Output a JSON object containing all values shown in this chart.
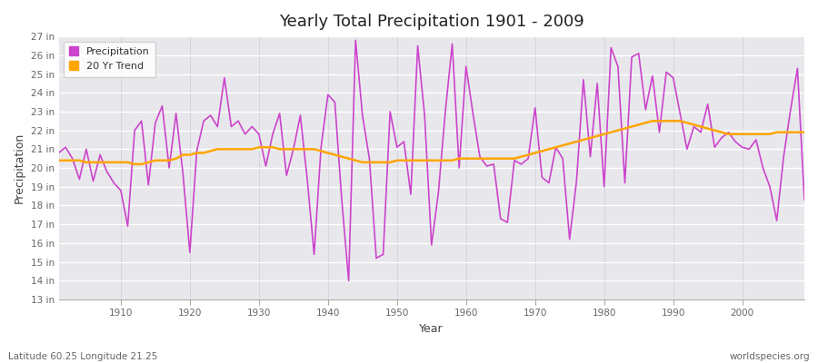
{
  "title": "Yearly Total Precipitation 1901 - 2009",
  "xlabel": "Year",
  "ylabel": "Precipitation",
  "footnote_left": "Latitude 60.25 Longitude 21.25",
  "footnote_right": "worldspecies.org",
  "years": [
    1901,
    1902,
    1903,
    1904,
    1905,
    1906,
    1907,
    1908,
    1909,
    1910,
    1911,
    1912,
    1913,
    1914,
    1915,
    1916,
    1917,
    1918,
    1919,
    1920,
    1921,
    1922,
    1923,
    1924,
    1925,
    1926,
    1927,
    1928,
    1929,
    1930,
    1931,
    1932,
    1933,
    1934,
    1935,
    1936,
    1937,
    1938,
    1939,
    1940,
    1941,
    1942,
    1943,
    1944,
    1945,
    1946,
    1947,
    1948,
    1949,
    1950,
    1951,
    1952,
    1953,
    1954,
    1955,
    1956,
    1957,
    1958,
    1959,
    1960,
    1961,
    1962,
    1963,
    1964,
    1965,
    1966,
    1967,
    1968,
    1969,
    1970,
    1971,
    1972,
    1973,
    1974,
    1975,
    1976,
    1977,
    1978,
    1979,
    1980,
    1981,
    1982,
    1983,
    1984,
    1985,
    1986,
    1987,
    1988,
    1989,
    1990,
    1991,
    1992,
    1993,
    1994,
    1995,
    1996,
    1997,
    1998,
    1999,
    2000,
    2001,
    2002,
    2003,
    2004,
    2005,
    2006,
    2007,
    2008,
    2009
  ],
  "precip": [
    20.8,
    21.1,
    20.5,
    19.4,
    21.0,
    19.3,
    20.7,
    19.8,
    19.2,
    18.8,
    16.9,
    22.0,
    22.5,
    19.1,
    22.4,
    23.3,
    20.0,
    22.9,
    19.7,
    15.5,
    20.9,
    22.5,
    22.8,
    22.2,
    24.8,
    22.2,
    22.5,
    21.8,
    22.2,
    21.8,
    20.1,
    21.8,
    22.9,
    19.6,
    21.0,
    22.8,
    19.4,
    15.4,
    21.1,
    23.9,
    23.5,
    18.3,
    14.0,
    26.8,
    22.8,
    20.5,
    15.2,
    15.4,
    23.0,
    21.1,
    21.4,
    18.6,
    26.5,
    22.8,
    15.9,
    18.7,
    23.0,
    26.6,
    20.0,
    25.4,
    22.9,
    20.6,
    20.1,
    20.2,
    17.3,
    17.1,
    20.4,
    20.2,
    20.5,
    23.2,
    19.5,
    19.2,
    21.1,
    20.5,
    16.2,
    19.3,
    24.7,
    20.6,
    24.5,
    19.0,
    26.4,
    25.4,
    19.2,
    25.9,
    26.1,
    23.1,
    24.9,
    21.9,
    25.1,
    24.8,
    22.9,
    21.0,
    22.2,
    21.9,
    23.4,
    21.1,
    21.6,
    21.9,
    21.4,
    21.1,
    21.0,
    21.5,
    20.0,
    19.0,
    17.2,
    20.6,
    23.1,
    25.3,
    18.3
  ],
  "trend": [
    20.4,
    20.4,
    20.4,
    20.4,
    20.3,
    20.3,
    20.3,
    20.3,
    20.3,
    20.3,
    20.3,
    20.2,
    20.2,
    20.3,
    20.4,
    20.4,
    20.4,
    20.5,
    20.7,
    20.7,
    20.8,
    20.8,
    20.9,
    21.0,
    21.0,
    21.0,
    21.0,
    21.0,
    21.0,
    21.1,
    21.1,
    21.1,
    21.0,
    21.0,
    21.0,
    21.0,
    21.0,
    21.0,
    20.9,
    20.8,
    20.7,
    20.6,
    20.5,
    20.4,
    20.3,
    20.3,
    20.3,
    20.3,
    20.3,
    20.4,
    20.4,
    20.4,
    20.4,
    20.4,
    20.4,
    20.4,
    20.4,
    20.4,
    20.5,
    20.5,
    20.5,
    20.5,
    20.5,
    20.5,
    20.5,
    20.5,
    20.5,
    20.6,
    20.7,
    20.8,
    20.9,
    21.0,
    21.1,
    21.2,
    21.3,
    21.4,
    21.5,
    21.6,
    21.7,
    21.8,
    21.9,
    22.0,
    22.1,
    22.2,
    22.3,
    22.4,
    22.5,
    22.5,
    22.5,
    22.5,
    22.5,
    22.4,
    22.3,
    22.2,
    22.1,
    22.0,
    21.9,
    21.8,
    21.8,
    21.8,
    21.8,
    21.8,
    21.8,
    21.8,
    21.9,
    21.9,
    21.9,
    21.9,
    21.9
  ],
  "precip_color": "#CC44CC",
  "trend_color": "#FFA500",
  "fig_bg_color": "#FFFFFF",
  "plot_bg_color": "#E8E8EC",
  "grid_color_h": "#FFFFFF",
  "grid_color_v": "#CCCCDD",
  "title_color": "#222222",
  "label_color": "#444444",
  "tick_color": "#666666",
  "ylim": [
    13,
    27
  ],
  "yticks": [
    13,
    14,
    15,
    16,
    17,
    18,
    19,
    20,
    21,
    22,
    23,
    24,
    25,
    26,
    27
  ],
  "ytick_labels": [
    "13 in",
    "14 in",
    "15 in",
    "16 in",
    "17 in",
    "18 in",
    "19 in",
    "20 in",
    "21 in",
    "22 in",
    "23 in",
    "24 in",
    "25 in",
    "26 in",
    "27 in"
  ],
  "xlim": [
    1901,
    2009
  ],
  "xticks": [
    1910,
    1920,
    1930,
    1940,
    1950,
    1960,
    1970,
    1980,
    1990,
    2000
  ]
}
